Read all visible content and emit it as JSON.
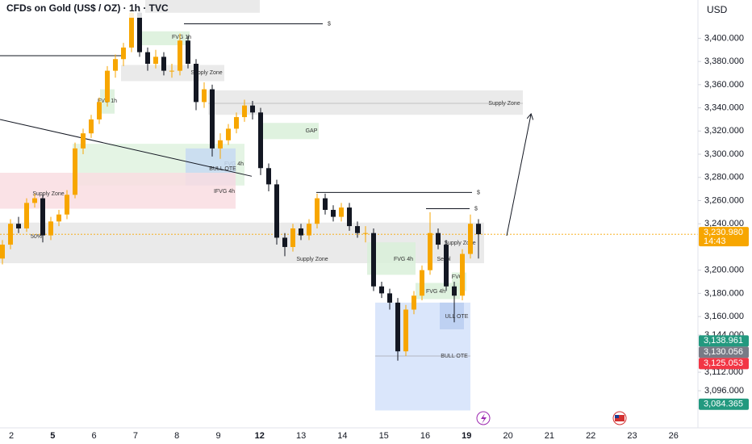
{
  "chart_data": {
    "type": "candlestick",
    "title": "CFDs on Gold (US$ / OZ) · 1h · TVC",
    "currency": "USD",
    "up_color": "#f7a600",
    "down_color": "#131722",
    "categories": [
      "2",
      "5",
      "6",
      "7",
      "8",
      "9",
      "12",
      "13",
      "14",
      "15",
      "16",
      "19",
      "20",
      "21",
      "22",
      "23",
      "26"
    ],
    "ylim": [
      3064,
      3433
    ],
    "yticks": [
      {
        "value": 3400,
        "label": "3,400.000"
      },
      {
        "value": 3380,
        "label": "3,380.000"
      },
      {
        "value": 3360,
        "label": "3,360.000"
      },
      {
        "value": 3340,
        "label": "3,340.000"
      },
      {
        "value": 3320,
        "label": "3,320.000"
      },
      {
        "value": 3300,
        "label": "3,300.000"
      },
      {
        "value": 3280,
        "label": "3,280.000"
      },
      {
        "value": 3260,
        "label": "3,260.000"
      },
      {
        "value": 3240,
        "label": "3,240.000"
      },
      {
        "value": 3200,
        "label": "3,200.000"
      },
      {
        "value": 3180,
        "label": "3,180.000"
      },
      {
        "value": 3160,
        "label": "3,160.000"
      },
      {
        "value": 3144,
        "label": "3,144.000"
      },
      {
        "value": 3112,
        "label": "3,112.000"
      },
      {
        "value": 3096,
        "label": "3,096.000"
      }
    ],
    "open": [
      3210,
      3222,
      3240,
      3236,
      3258,
      3262,
      3230,
      3242,
      3248,
      3265,
      3305,
      3318,
      3330,
      3345,
      3372,
      3382,
      3392,
      3422,
      3388,
      3378,
      3384,
      3372,
      3372,
      3398,
      3378,
      3345,
      3356,
      3305,
      3312,
      3322,
      3332,
      3342,
      3336,
      3288,
      3274,
      3228,
      3220,
      3236,
      3230,
      3240,
      3262,
      3252,
      3246,
      3254,
      3238,
      3232,
      3232,
      3186,
      3180,
      3172,
      3130,
      3166,
      3178,
      3200,
      3232,
      3222,
      3186,
      3178,
      3214,
      3240
    ],
    "high": [
      3226,
      3244,
      3246,
      3262,
      3266,
      3265,
      3246,
      3252,
      3269,
      3310,
      3322,
      3334,
      3349,
      3376,
      3386,
      3396,
      3430,
      3426,
      3392,
      3390,
      3388,
      3378,
      3404,
      3402,
      3382,
      3362,
      3360,
      3318,
      3326,
      3336,
      3347,
      3346,
      3340,
      3292,
      3278,
      3232,
      3240,
      3240,
      3244,
      3266,
      3266,
      3256,
      3258,
      3258,
      3242,
      3238,
      3236,
      3190,
      3184,
      3176,
      3170,
      3182,
      3204,
      3250,
      3236,
      3226,
      3190,
      3218,
      3248,
      3244
    ],
    "low": [
      3205,
      3218,
      3232,
      3233,
      3254,
      3224,
      3226,
      3238,
      3244,
      3262,
      3300,
      3314,
      3326,
      3341,
      3366,
      3376,
      3388,
      3384,
      3372,
      3374,
      3368,
      3366,
      3368,
      3374,
      3338,
      3340,
      3298,
      3296,
      3308,
      3318,
      3328,
      3330,
      3282,
      3268,
      3222,
      3212,
      3216,
      3226,
      3226,
      3236,
      3248,
      3242,
      3242,
      3234,
      3228,
      3224,
      3182,
      3176,
      3166,
      3122,
      3126,
      3162,
      3174,
      3196,
      3218,
      3182,
      3155,
      3174,
      3210,
      3210
    ],
    "close": [
      3222,
      3240,
      3236,
      3258,
      3262,
      3230,
      3242,
      3248,
      3265,
      3305,
      3318,
      3330,
      3345,
      3372,
      3382,
      3392,
      3422,
      3388,
      3378,
      3384,
      3372,
      3372,
      3398,
      3378,
      3345,
      3356,
      3305,
      3312,
      3322,
      3332,
      3342,
      3336,
      3288,
      3274,
      3228,
      3220,
      3236,
      3230,
      3240,
      3262,
      3252,
      3246,
      3254,
      3238,
      3232,
      3232,
      3186,
      3180,
      3172,
      3130,
      3166,
      3178,
      3200,
      3232,
      3222,
      3186,
      3178,
      3214,
      3240,
      3231
    ],
    "zones": [
      {
        "range": [
          3422,
          3433
        ],
        "color": "#e6e6e6"
      },
      {
        "label": "FVG 1h",
        "range": [
          3394,
          3406
        ],
        "color": "#d9f0d9"
      },
      {
        "label": "Supply Zone",
        "range": [
          3363,
          3377
        ],
        "color": "#e6e6e6"
      },
      {
        "label": "FVG 1h",
        "range": [
          3335,
          3356
        ],
        "color": "#d9f0d9"
      },
      {
        "label": "Supply Zone",
        "range": [
          3334,
          3355
        ],
        "color": "#e6e6e6"
      },
      {
        "label": "GAP",
        "range": [
          3313,
          3327
        ],
        "color": "#d9f0d9"
      },
      {
        "label": "FVG 4h",
        "range": [
          3273,
          3309
        ],
        "color": "#dff2df"
      },
      {
        "label": "BULL OTE",
        "range": [
          3273,
          3305
        ],
        "color": "#c7d9f2"
      },
      {
        "label": "IFVG 4h",
        "range": [
          3253,
          3284
        ],
        "color": "#f9dde2"
      },
      {
        "label": "Supply Zone",
        "range": [
          3206,
          3241
        ],
        "color": "#e6e6e6"
      },
      {
        "label": "FVG 4h",
        "range": [
          3196,
          3224
        ],
        "color": "#d9f0d9"
      },
      {
        "label": "FVG 4h",
        "range": [
          3175,
          3189
        ],
        "color": "#d9f0d9"
      },
      {
        "label": "FVG",
        "range": [
          3182,
          3198
        ],
        "color": "#d9f0d9"
      },
      {
        "label": "BULL OTE",
        "range": [
          3079,
          3172
        ],
        "color": "#d3e2fa"
      },
      {
        "label": "ULL OTE",
        "range": [
          3149,
          3172
        ],
        "color": "#b9cdf0"
      }
    ],
    "levels": [
      {
        "value": 3412.5,
        "label": "$"
      },
      {
        "value": 3267,
        "label": "$"
      },
      {
        "value": 3253,
        "label": "$"
      }
    ],
    "lines": [
      [
        3330,
        3281
      ],
      [
        3385,
        3385
      ]
    ],
    "annotations": [
      "Supply Zone",
      "50%",
      "Supply Zone",
      "Sellpl"
    ],
    "price_labels": [
      {
        "value": 3230.98,
        "label": "3,230.980",
        "color": "#f7a600"
      },
      {
        "value": 3138.961,
        "label": "3,138.961",
        "color": "#22997f"
      },
      {
        "value": 3130.056,
        "label": "3,130.056",
        "color": "#787b86"
      },
      {
        "value": 3125.053,
        "label": "3,125.053",
        "color": "#f23645"
      },
      {
        "value": 3084.365,
        "label": "3,084.365",
        "color": "#22997f"
      }
    ],
    "countdown": "14:43"
  }
}
